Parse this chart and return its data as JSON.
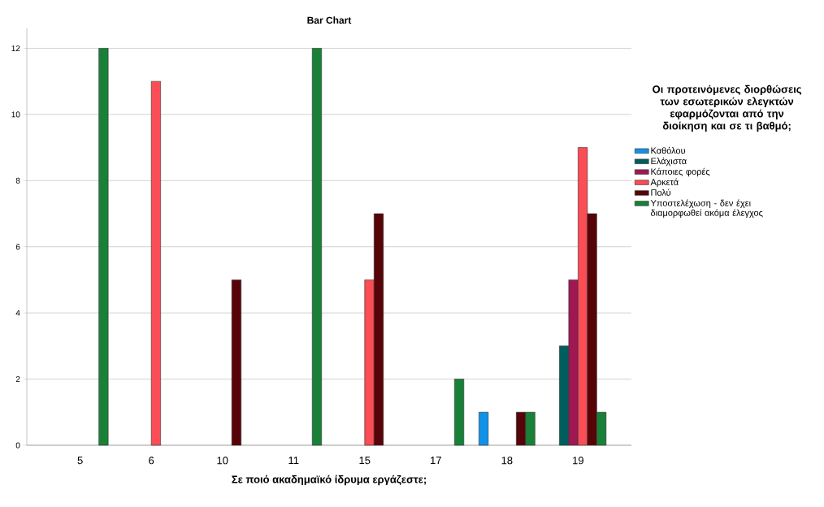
{
  "chart_data": {
    "type": "bar",
    "title": "Bar Chart",
    "xlabel": "Σε ποιό ακαδημαϊκό ίδρυμα εργάζεστε;",
    "legend_title": "Οι προτεινόμενες διορθώσεις των εσωτερικών ελεγκτών εφαρμόζονται από την διοίκηση και σε τι βαθμό;",
    "categories": [
      "5",
      "6",
      "10",
      "11",
      "15",
      "17",
      "18",
      "19"
    ],
    "series": [
      {
        "name": "Καθόλου",
        "color": "#1192e8",
        "values": [
          null,
          null,
          null,
          null,
          null,
          null,
          1,
          null
        ]
      },
      {
        "name": "Ελάχιστα",
        "color": "#005d5d",
        "values": [
          null,
          null,
          null,
          null,
          null,
          null,
          null,
          3
        ]
      },
      {
        "name": "Κάποιες φορές",
        "color": "#9f1853",
        "values": [
          null,
          null,
          null,
          null,
          null,
          null,
          null,
          5
        ]
      },
      {
        "name": "Αρκετά",
        "color": "#fa4d56",
        "values": [
          null,
          11,
          null,
          null,
          5,
          null,
          null,
          9
        ]
      },
      {
        "name": "Πολύ",
        "color": "#570408",
        "values": [
          null,
          null,
          5,
          null,
          7,
          null,
          1,
          7
        ]
      },
      {
        "name": "Υποστελέχωση - δεν έχει διαμορφωθεί ακόμα έλεγχος",
        "color": "#198038",
        "values": [
          12,
          null,
          null,
          12,
          null,
          2,
          1,
          1
        ]
      }
    ],
    "ylim": [
      0,
      12.6
    ],
    "yticks": [
      0,
      2,
      4,
      6,
      8,
      10,
      12
    ],
    "grid": "y",
    "legend": "right"
  }
}
